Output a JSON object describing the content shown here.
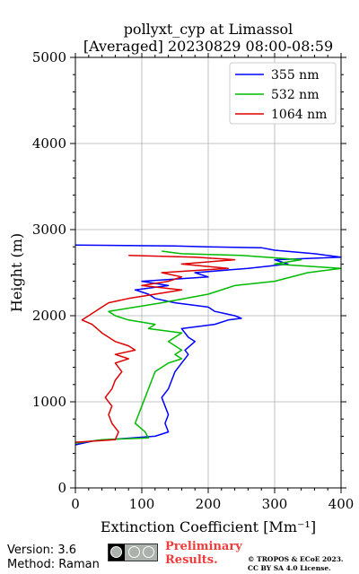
{
  "chart_data": {
    "type": "line",
    "title_line1": "pollyxt_cyp at Limassol",
    "title_line2": "[Averaged] 20230829 08:00-08:59",
    "xlabel": "Extinction Coefficient [Mm⁻¹]",
    "ylabel": "Height (m)",
    "xlim": [
      0,
      400
    ],
    "ylim": [
      0,
      5000
    ],
    "xticks": [
      0,
      100,
      200,
      300,
      400
    ],
    "yticks": [
      0,
      1000,
      2000,
      3000,
      4000,
      5000
    ],
    "grid": true,
    "legend_position": "top-right",
    "series": [
      {
        "name": "355 nm",
        "color": "#0000ff",
        "x": [
          0,
          30,
          120,
          140,
          135,
          140,
          135,
          130,
          140,
          145,
          150,
          160,
          170,
          165,
          180,
          170,
          160,
          210,
          230,
          250,
          240,
          210,
          200,
          150,
          120,
          110,
          90,
          140,
          100,
          200,
          180,
          260,
          320,
          300,
          400,
          360,
          300,
          280,
          200,
          150,
          0
        ],
        "y": [
          500,
          550,
          600,
          650,
          750,
          850,
          950,
          1050,
          1150,
          1250,
          1350,
          1450,
          1550,
          1600,
          1700,
          1750,
          1850,
          1900,
          1950,
          1970,
          2000,
          2050,
          2100,
          2150,
          2200,
          2250,
          2300,
          2350,
          2400,
          2450,
          2500,
          2550,
          2600,
          2650,
          2680,
          2720,
          2760,
          2790,
          2800,
          2810,
          2820
        ]
      },
      {
        "name": "532 nm",
        "color": "#00bb00",
        "x": [
          0,
          40,
          110,
          105,
          90,
          95,
          100,
          105,
          110,
          115,
          120,
          140,
          160,
          150,
          160,
          140,
          150,
          160,
          110,
          120,
          80,
          60,
          50,
          130,
          200,
          240,
          300,
          350,
          400,
          300,
          340,
          250,
          160,
          140,
          130
        ],
        "y": [
          520,
          560,
          580,
          650,
          750,
          850,
          950,
          1050,
          1150,
          1250,
          1350,
          1450,
          1500,
          1550,
          1600,
          1700,
          1750,
          1800,
          1850,
          1900,
          1950,
          2000,
          2050,
          2150,
          2250,
          2350,
          2400,
          2500,
          2550,
          2600,
          2650,
          2700,
          2720,
          2740,
          2750
        ]
      },
      {
        "name": "1064 nm",
        "color": "#dd0000",
        "x": [
          0,
          60,
          65,
          55,
          50,
          55,
          45,
          55,
          60,
          70,
          60,
          80,
          60,
          90,
          80,
          60,
          40,
          25,
          10,
          20,
          40,
          50,
          80,
          160,
          100,
          140,
          160,
          130,
          230,
          160,
          240,
          180,
          80
        ],
        "y": [
          530,
          560,
          650,
          750,
          850,
          950,
          1050,
          1150,
          1250,
          1350,
          1450,
          1500,
          1550,
          1600,
          1650,
          1700,
          1800,
          1900,
          1950,
          2000,
          2100,
          2150,
          2200,
          2300,
          2350,
          2400,
          2450,
          2500,
          2550,
          2600,
          2650,
          2680,
          2700
        ]
      }
    ]
  },
  "footer": {
    "version": "Version: 3.6",
    "method": "Method: Raman",
    "prelim_line1": "Preliminary",
    "prelim_line2": "Results.",
    "copyright_line1": "© TROPOS & ECoE 2023.",
    "copyright_line2": "CC BY SA 4.0 License."
  }
}
